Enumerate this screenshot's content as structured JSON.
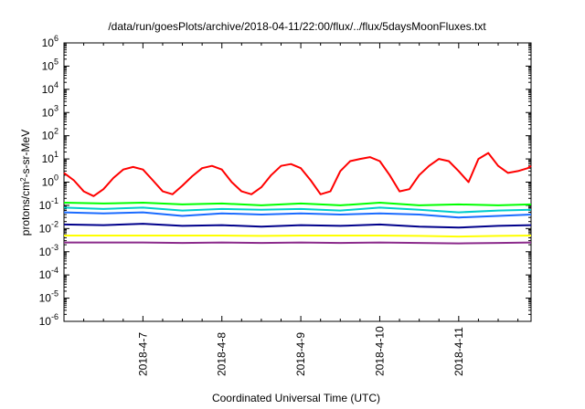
{
  "chart_data": {
    "type": "line",
    "title": "/data/run/goesPlots/archive/2018-04-11/22:00/flux/../flux/5daysMoonFluxes.txt",
    "xlabel": "Coordinated Universal Time (UTC)",
    "ylabel": {
      "prefix": "protons/cm",
      "sup": "2",
      "suffix": "-s-sr-MeV"
    },
    "x_axis": {
      "type": "time",
      "range": [
        "2018-04-06 00:00",
        "2018-04-11 22:00"
      ],
      "ticks": [
        "2018-4-7",
        "2018-4-8",
        "2018-4-9",
        "2018-4-10",
        "2018-4-11"
      ]
    },
    "y_axis": {
      "scale": "log",
      "range": [
        1e-06,
        1000000.0
      ],
      "ticks": [
        {
          "base": "10",
          "exp": "-6"
        },
        {
          "base": "10",
          "exp": "-5"
        },
        {
          "base": "10",
          "exp": "-4"
        },
        {
          "base": "10",
          "exp": "-3"
        },
        {
          "base": "10",
          "exp": "-2"
        },
        {
          "base": "10",
          "exp": "-1"
        },
        {
          "base": "10",
          "exp": "0"
        },
        {
          "base": "10",
          "exp": "1"
        },
        {
          "base": "10",
          "exp": "2"
        },
        {
          "base": "10",
          "exp": "3"
        },
        {
          "base": "10",
          "exp": "4"
        },
        {
          "base": "10",
          "exp": "5"
        },
        {
          "base": "10",
          "exp": "6"
        }
      ]
    },
    "grid": false,
    "legend": "none",
    "series": [
      {
        "color": "#ff0000",
        "x_hours": [
          0,
          3,
          6,
          9,
          12,
          15,
          18,
          21,
          24,
          27,
          30,
          33,
          36,
          39,
          42,
          45,
          48,
          51,
          54,
          57,
          60,
          63,
          66,
          69,
          72,
          75,
          78,
          81,
          84,
          87,
          90,
          93,
          96,
          99,
          102,
          105,
          108,
          111,
          114,
          117,
          120,
          123,
          126,
          129,
          132,
          135,
          138,
          141,
          142
        ],
        "values": [
          2.5,
          1.2,
          0.4,
          0.25,
          0.5,
          1.5,
          3.5,
          4.5,
          3.5,
          1.2,
          0.4,
          0.3,
          0.7,
          1.8,
          4,
          5,
          3.5,
          1,
          0.4,
          0.3,
          0.6,
          2,
          5,
          6,
          4,
          1.2,
          0.3,
          0.4,
          3,
          8,
          10,
          12,
          8,
          2,
          0.4,
          0.5,
          2,
          5,
          10,
          8,
          3,
          1,
          10,
          18,
          5,
          2.5,
          3,
          4,
          5
        ]
      },
      {
        "color": "#00ff00",
        "x_hours": [
          0,
          12,
          24,
          36,
          48,
          60,
          72,
          84,
          96,
          108,
          120,
          132,
          142
        ],
        "values": [
          0.13,
          0.12,
          0.13,
          0.11,
          0.12,
          0.1,
          0.12,
          0.1,
          0.13,
          0.1,
          0.11,
          0.1,
          0.11
        ]
      },
      {
        "color": "#00cccc",
        "x_hours": [
          0,
          12,
          24,
          36,
          48,
          60,
          72,
          84,
          96,
          108,
          120,
          132,
          142
        ],
        "values": [
          0.08,
          0.07,
          0.08,
          0.06,
          0.07,
          0.065,
          0.07,
          0.06,
          0.08,
          0.065,
          0.05,
          0.06,
          0.065
        ]
      },
      {
        "color": "#1a6bff",
        "x_hours": [
          0,
          12,
          24,
          36,
          48,
          60,
          72,
          84,
          96,
          108,
          120,
          132,
          142
        ],
        "values": [
          0.05,
          0.045,
          0.05,
          0.035,
          0.045,
          0.04,
          0.045,
          0.04,
          0.045,
          0.04,
          0.03,
          0.035,
          0.04
        ]
      },
      {
        "color": "#00008b",
        "x_hours": [
          0,
          12,
          24,
          36,
          48,
          60,
          72,
          84,
          96,
          108,
          120,
          132,
          142
        ],
        "values": [
          0.015,
          0.014,
          0.016,
          0.013,
          0.014,
          0.012,
          0.014,
          0.013,
          0.015,
          0.012,
          0.011,
          0.013,
          0.014
        ]
      },
      {
        "color": "#ffff00",
        "x_hours": [
          0,
          12,
          24,
          36,
          48,
          60,
          72,
          84,
          96,
          108,
          120,
          132,
          142
        ],
        "values": [
          0.005,
          0.005,
          0.005,
          0.005,
          0.005,
          0.0048,
          0.005,
          0.005,
          0.005,
          0.0048,
          0.0045,
          0.0048,
          0.005
        ]
      },
      {
        "color": "#8b2a8b",
        "x_hours": [
          0,
          12,
          24,
          36,
          48,
          60,
          72,
          84,
          96,
          108,
          120,
          132,
          142
        ],
        "values": [
          0.0025,
          0.0025,
          0.0025,
          0.0024,
          0.0025,
          0.0024,
          0.0025,
          0.0024,
          0.0025,
          0.0024,
          0.0023,
          0.0024,
          0.0025
        ]
      }
    ]
  }
}
